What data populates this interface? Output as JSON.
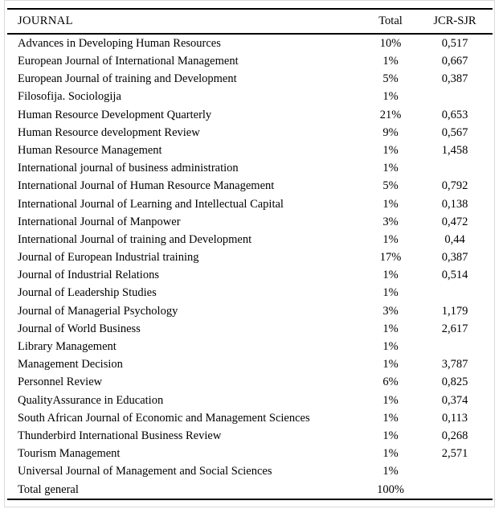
{
  "table": {
    "columns": {
      "journal": "JOURNAL",
      "total": "Total",
      "jcr_sjr": "JCR-SJR"
    },
    "rows": [
      {
        "journal": "Advances in Developing Human Resources",
        "total": "10%",
        "jcr_sjr": "0,517"
      },
      {
        "journal": "European Journal of International Management",
        "total": "1%",
        "jcr_sjr": "0,667"
      },
      {
        "journal": "European Journal of training and Development",
        "total": "5%",
        "jcr_sjr": "0,387"
      },
      {
        "journal": "Filosofija. Sociologija",
        "total": "1%",
        "jcr_sjr": ""
      },
      {
        "journal": "Human Resource Development Quarterly",
        "total": "21%",
        "jcr_sjr": "0,653"
      },
      {
        "journal": "Human Resource development Review",
        "total": "9%",
        "jcr_sjr": "0,567"
      },
      {
        "journal": "Human Resource Management",
        "total": "1%",
        "jcr_sjr": "1,458"
      },
      {
        "journal": "International journal of business administration",
        "total": "1%",
        "jcr_sjr": ""
      },
      {
        "journal": "International Journal of Human Resource Management",
        "total": "5%",
        "jcr_sjr": "0,792"
      },
      {
        "journal": "International Journal of Learning and Intellectual Capital",
        "total": "1%",
        "jcr_sjr": "0,138"
      },
      {
        "journal": "International Journal of Manpower",
        "total": "3%",
        "jcr_sjr": "0,472"
      },
      {
        "journal": "International Journal of training and Development",
        "total": "1%",
        "jcr_sjr": "0,44"
      },
      {
        "journal": "Journal of European Industrial training",
        "total": "17%",
        "jcr_sjr": "0,387"
      },
      {
        "journal": "Journal of Industrial Relations",
        "total": "1%",
        "jcr_sjr": "0,514"
      },
      {
        "journal": "Journal of Leadership Studies",
        "total": "1%",
        "jcr_sjr": ""
      },
      {
        "journal": "Journal of Managerial Psychology",
        "total": "3%",
        "jcr_sjr": "1,179"
      },
      {
        "journal": "Journal of World Business",
        "total": "1%",
        "jcr_sjr": "2,617"
      },
      {
        "journal": "Library Management",
        "total": "1%",
        "jcr_sjr": ""
      },
      {
        "journal": "Management Decision",
        "total": "1%",
        "jcr_sjr": "3,787"
      },
      {
        "journal": "Personnel Review",
        "total": "6%",
        "jcr_sjr": "0,825"
      },
      {
        "journal": "QualityAssurance in Education",
        "total": "1%",
        "jcr_sjr": "0,374"
      },
      {
        "journal": "South African Journal of Economic and Management Sciences",
        "total": "1%",
        "jcr_sjr": "0,113"
      },
      {
        "journal": "Thunderbird International Business Review",
        "total": "1%",
        "jcr_sjr": "0,268"
      },
      {
        "journal": "Tourism Management",
        "total": "1%",
        "jcr_sjr": "2,571"
      },
      {
        "journal": "Universal Journal of Management and Social Sciences",
        "total": "1%",
        "jcr_sjr": ""
      },
      {
        "journal": "Total general",
        "total": "100%",
        "jcr_sjr": ""
      }
    ],
    "colors": {
      "rule": "#000000",
      "text": "#000000",
      "background": "#ffffff",
      "frame": "#d9d9d9"
    }
  }
}
